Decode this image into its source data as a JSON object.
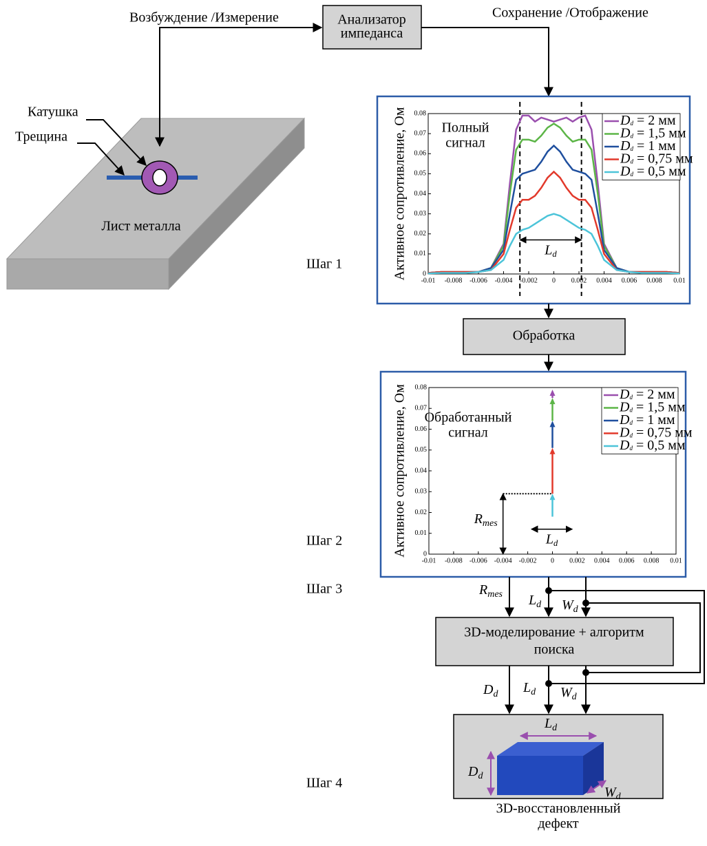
{
  "labels": {
    "excitation": "Возбуждение /Измерение",
    "analyzer": [
      "Анализатор",
      "импеданса"
    ],
    "save": "Сохранение /Отображение",
    "coil": "Катушка",
    "crack": "Трещина",
    "sheet": "Лист металла",
    "processing": "Обработка",
    "model": [
      "3D-моделирование + алгоритм",
      "поиска"
    ],
    "result": [
      "3D-восстановленный",
      "дефект"
    ]
  },
  "steps": [
    "Шаг 1",
    "Шаг 2",
    "Шаг 3",
    "Шаг 4"
  ],
  "symbols": {
    "R_mes": {
      "base": "R",
      "sub": "mes"
    },
    "L_d": {
      "base": "L",
      "sub": "d"
    },
    "W_d": {
      "base": "W",
      "sub": "d"
    },
    "D_d": {
      "base": "D",
      "sub": "d"
    }
  },
  "chart_data": [
    {
      "type": "line",
      "annotation": [
        "Полный",
        "сигнал"
      ],
      "ylabel": "Активное сопротивление, Ом",
      "x": [
        -0.01,
        -0.009,
        -0.008,
        -0.007,
        -0.006,
        -0.005,
        -0.004,
        -0.0035,
        -0.003,
        -0.0025,
        -0.002,
        -0.0015,
        -0.001,
        -0.0005,
        0,
        0.0005,
        0.001,
        0.0015,
        0.002,
        0.0025,
        0.003,
        0.0035,
        0.004,
        0.005,
        0.006,
        0.007,
        0.008,
        0.009,
        0.01
      ],
      "series": [
        {
          "name": {
            "base": "D",
            "sub": "d",
            "rest": " = 2 мм"
          },
          "color": "#9a4fae",
          "values": [
            0.0005,
            0.001,
            0.001,
            0.001,
            0.001,
            0.003,
            0.015,
            0.045,
            0.072,
            0.079,
            0.079,
            0.076,
            0.078,
            0.077,
            0.076,
            0.077,
            0.078,
            0.076,
            0.078,
            0.079,
            0.072,
            0.045,
            0.015,
            0.003,
            0.001,
            0.001,
            0.001,
            0.001,
            0.0005
          ]
        },
        {
          "name": {
            "base": "D",
            "sub": "d",
            "rest": " = 1,5 мм"
          },
          "color": "#5cb547",
          "values": [
            0.0005,
            0.001,
            0.001,
            0.001,
            0.001,
            0.003,
            0.014,
            0.04,
            0.062,
            0.067,
            0.067,
            0.066,
            0.069,
            0.073,
            0.075,
            0.073,
            0.069,
            0.066,
            0.067,
            0.067,
            0.062,
            0.04,
            0.014,
            0.003,
            0.001,
            0.001,
            0.001,
            0.001,
            0.0005
          ]
        },
        {
          "name": {
            "base": "D",
            "sub": "d",
            "rest": " = 1 мм"
          },
          "color": "#1f4f9e",
          "values": [
            0.0005,
            0.001,
            0.001,
            0.001,
            0.001,
            0.003,
            0.012,
            0.03,
            0.047,
            0.05,
            0.051,
            0.052,
            0.056,
            0.061,
            0.064,
            0.061,
            0.056,
            0.052,
            0.051,
            0.05,
            0.047,
            0.03,
            0.012,
            0.003,
            0.001,
            0.001,
            0.001,
            0.001,
            0.0005
          ]
        },
        {
          "name": {
            "base": "D",
            "sub": "d",
            "rest": " = 0,75 мм"
          },
          "color": "#e2392b",
          "values": [
            0.0005,
            0.001,
            0.001,
            0.001,
            0.001,
            0.002,
            0.01,
            0.022,
            0.033,
            0.037,
            0.037,
            0.039,
            0.043,
            0.048,
            0.051,
            0.048,
            0.043,
            0.039,
            0.037,
            0.037,
            0.033,
            0.022,
            0.01,
            0.002,
            0.001,
            0.001,
            0.001,
            0.001,
            0.0005
          ]
        },
        {
          "name": {
            "base": "D",
            "sub": "d",
            "rest": " = 0,5 мм"
          },
          "color": "#4cc4d9",
          "values": [
            0.0003,
            0.0005,
            0.0005,
            0.0005,
            0.001,
            0.002,
            0.007,
            0.014,
            0.02,
            0.022,
            0.023,
            0.025,
            0.027,
            0.029,
            0.03,
            0.029,
            0.027,
            0.025,
            0.023,
            0.022,
            0.02,
            0.014,
            0.007,
            0.002,
            0.001,
            0.0005,
            0.0005,
            0.0005,
            0.0003
          ]
        }
      ],
      "xlim": [
        -0.01,
        0.01
      ],
      "ylim": [
        0,
        0.08
      ],
      "xticks": [
        -0.01,
        -0.008,
        -0.006,
        -0.004,
        -0.002,
        0,
        0.002,
        0.004,
        0.006,
        0.008,
        0.01
      ],
      "yticks": [
        0,
        0.01,
        0.02,
        0.03,
        0.04,
        0.05,
        0.06,
        0.07,
        0.08
      ],
      "vlines": [
        -0.0027,
        0.0022
      ],
      "ld_arrow": {
        "x": [
          -0.0027,
          0.0022
        ],
        "y": 0.017
      }
    },
    {
      "type": "arrows",
      "annotation": [
        "Обработанный",
        "сигнал"
      ],
      "ylabel": "Активное сопротивление, Ом",
      "arrow_x": 0,
      "series": [
        {
          "name": {
            "base": "D",
            "sub": "d",
            "rest": " = 2 мм"
          },
          "color": "#9a4fae",
          "values": [
            0.075,
            0.079
          ]
        },
        {
          "name": {
            "base": "D",
            "sub": "d",
            "rest": " = 1,5 мм"
          },
          "color": "#5cb547",
          "values": [
            0.064,
            0.075
          ]
        },
        {
          "name": {
            "base": "D",
            "sub": "d",
            "rest": " = 1 мм"
          },
          "color": "#1f4f9e",
          "values": [
            0.051,
            0.064
          ]
        },
        {
          "name": {
            "base": "D",
            "sub": "d",
            "rest": " = 0,75 мм"
          },
          "color": "#e2392b",
          "values": [
            0.029,
            0.051
          ]
        },
        {
          "name": {
            "base": "D",
            "sub": "d",
            "rest": " = 0,5 мм"
          },
          "color": "#4cc4d9",
          "values": [
            0.018,
            0.029
          ]
        }
      ],
      "xlim": [
        -0.01,
        0.01
      ],
      "ylim": [
        0,
        0.08
      ],
      "xticks": [
        -0.01,
        -0.008,
        -0.006,
        -0.004,
        -0.002,
        0,
        0.002,
        0.004,
        0.006,
        0.008,
        0.01
      ],
      "yticks": [
        0,
        0.01,
        0.02,
        0.03,
        0.04,
        0.05,
        0.06,
        0.07,
        0.08
      ],
      "r_mes": {
        "x": -0.004,
        "y": 0.029
      },
      "ld_arrow": {
        "x": [
          -0.0017,
          0.0016
        ],
        "y": 0.012
      }
    }
  ]
}
